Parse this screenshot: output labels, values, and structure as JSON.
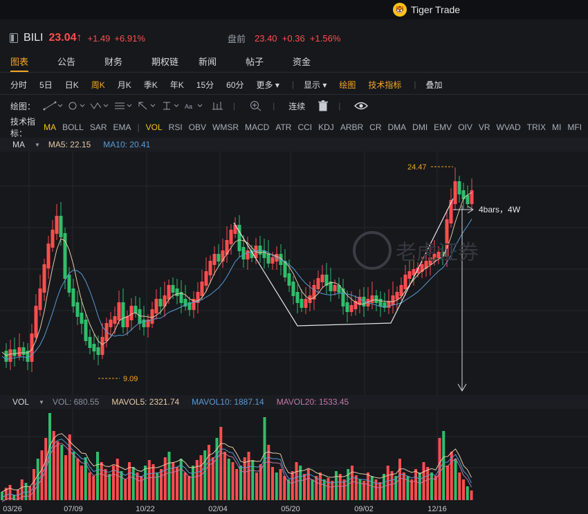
{
  "app": {
    "brand_logo": "🐯",
    "brand": "Tiger Trade"
  },
  "quote": {
    "symbol": "BILI",
    "price": "23.04↑",
    "change": "+1.49",
    "change_pct": "+6.91%",
    "premarket_label": "盘前",
    "premarket_price": "23.40",
    "premarket_change": "+0.36",
    "premarket_pct": "+1.56%"
  },
  "tabs": [
    "图表",
    "公告",
    "财务",
    "期权链",
    "新闻",
    "帖子",
    "资金"
  ],
  "periods": [
    "分时",
    "5日",
    "日K",
    "周K",
    "月K",
    "季K",
    "年K",
    "15分",
    "60分",
    "更多 ▾"
  ],
  "period_selected": "周K",
  "options": [
    "显示 ▾",
    "绘图",
    "技术指标",
    "叠加"
  ],
  "drawbar": {
    "label": "绘图：",
    "continuous": "连续"
  },
  "indicators": {
    "label": "技术指标：",
    "items": [
      "MA",
      "BOLL",
      "SAR",
      "EMA",
      "|",
      "VOL",
      "RSI",
      "OBV",
      "WMSR",
      "MACD",
      "ATR",
      "CCI",
      "KDJ",
      "ARBR",
      "CR",
      "DMA",
      "DMI",
      "EMV",
      "OIV",
      "VR",
      "WVAD",
      "TRIX",
      "MI",
      "MFI"
    ],
    "active": [
      "MA",
      "VOL"
    ]
  },
  "ma_legend": {
    "name": "MA",
    "ma5": "MA5: 22.15",
    "ma10": "MA10: 20.41"
  },
  "vol_legend": {
    "name": "VOL",
    "vol": "VOL: 680.55",
    "mavol5": "MAVOL5: 2321.74",
    "mavol10": "MAVOL10: 1887.14",
    "mavol20": "MAVOL20: 1533.45"
  },
  "annotations": {
    "high": "24.47",
    "low": "9.09",
    "measure": "4bars，4W"
  },
  "watermark": "老虎证券",
  "x_ticks": [
    "03/26",
    "07/09",
    "10/22",
    "02/04",
    "05/20",
    "09/02",
    "12/16"
  ],
  "colors": {
    "up": "#ff4d4f",
    "down": "#2fbe6b",
    "ma5": "#e6c9a8",
    "ma10": "#5b9bd5",
    "mavol20": "#c678a8",
    "accent": "#f5a623"
  },
  "chart_data": {
    "type": "candlestick",
    "x_tick_labels": [
      "03/26",
      "07/09",
      "10/22",
      "02/04",
      "05/20",
      "09/02",
      "12/16"
    ],
    "high": 24.47,
    "low": 9.09,
    "last_ma5": 22.15,
    "last_ma10": 20.41,
    "last_volume": 680.55
  }
}
